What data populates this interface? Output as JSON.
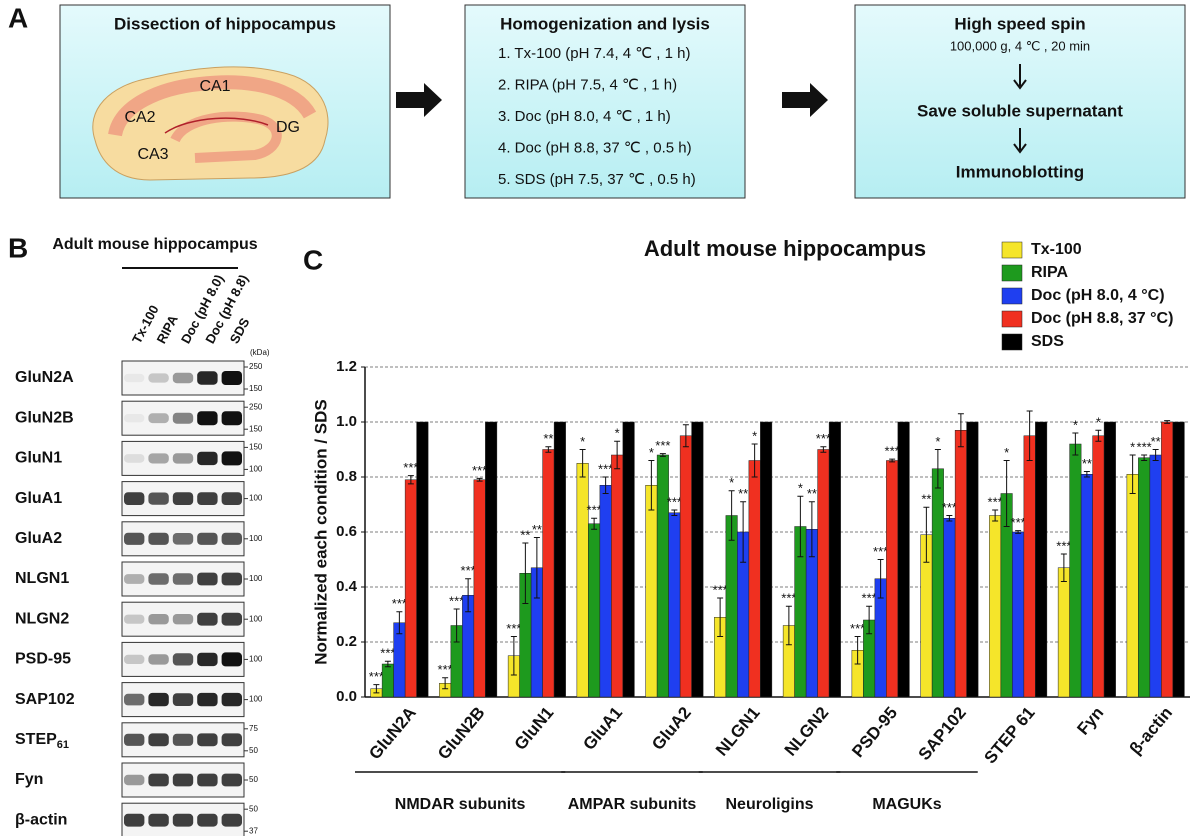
{
  "panel_a": {
    "label": "A",
    "box1": {
      "title": "Dissection of hippocampus",
      "regions": [
        "CA1",
        "CA2",
        "DG",
        "CA3"
      ]
    },
    "box2": {
      "title": "Homogenization and lysis",
      "lines": [
        "1. Tx-100 (pH 7.4, 4 ℃ , 1 h)",
        "2. RIPA (pH 7.5, 4 ℃ , 1 h)",
        "3. Doc (pH 8.0, 4 ℃ , 1 h)",
        "4. Doc (pH 8.8, 37 ℃ , 0.5 h)",
        "5. SDS (pH 7.5, 37 ℃ , 0.5 h)"
      ]
    },
    "box3": {
      "title": "High speed spin",
      "subtitle": "100,000 g, 4 ℃ , 20 min",
      "step2": "Save soluble supernatant",
      "step3": "Immunoblotting"
    }
  },
  "panel_b": {
    "label": "B",
    "title": "Adult mouse hippocampus",
    "lanes": [
      "Tx-100",
      "RIPA",
      "Doc (pH 8.0)",
      "Doc (pH 8.8)",
      "SDS"
    ],
    "kda_label": "(kDa)",
    "rows": [
      {
        "protein": "GluN2A",
        "markers": [
          "250",
          "150"
        ]
      },
      {
        "protein": "GluN2B",
        "markers": [
          "250",
          "150"
        ]
      },
      {
        "protein": "GluN1",
        "markers": [
          "150",
          "100"
        ]
      },
      {
        "protein": "GluA1",
        "markers": [
          "100"
        ]
      },
      {
        "protein": "GluA2",
        "markers": [
          "100"
        ]
      },
      {
        "protein": "NLGN1",
        "markers": [
          "100"
        ]
      },
      {
        "protein": "NLGN2",
        "markers": [
          "100"
        ]
      },
      {
        "protein": "PSD-95",
        "markers": [
          "100"
        ]
      },
      {
        "protein": "SAP102",
        "markers": [
          "100"
        ]
      },
      {
        "protein": "STEP",
        "sub": "61",
        "markers": [
          "75",
          "50"
        ]
      },
      {
        "protein": "Fyn",
        "markers": [
          "50"
        ]
      },
      {
        "protein": "β-actin",
        "markers": [
          "50",
          "37"
        ]
      }
    ]
  },
  "chart_data": {
    "type": "bar",
    "label": "C",
    "title": "Adult mouse hippocampus",
    "y_label": "Normalized each condition / SDS",
    "categories": [
      "GluN2A",
      "GluN2B",
      "GluN1",
      "GluA1",
      "GluA2",
      "NLGN1",
      "NLGN2",
      "PSD-95",
      "SAP102",
      "STEP 61",
      "Fyn",
      "β-actin"
    ],
    "groups": [
      "NMDAR subunits",
      "AMPAR subunits",
      "Neuroligins",
      "MAGUKs"
    ],
    "series": [
      {
        "name": "Tx-100",
        "color": "#f5e52a",
        "values": [
          0.03,
          0.05,
          0.15,
          0.85,
          0.77,
          0.29,
          0.26,
          0.17,
          0.59,
          0.66,
          0.47,
          0.81
        ],
        "errors": [
          0.015,
          0.02,
          0.07,
          0.05,
          0.09,
          0.07,
          0.07,
          0.05,
          0.1,
          0.02,
          0.05,
          0.07
        ],
        "significance": [
          "***",
          "***",
          "***",
          "*",
          "*",
          "***",
          "***",
          "***",
          "**",
          "***",
          "***",
          "*"
        ]
      },
      {
        "name": "RIPA",
        "color": "#1e9a1e",
        "values": [
          0.12,
          0.26,
          0.45,
          0.63,
          0.88,
          0.66,
          0.62,
          0.28,
          0.83,
          0.74,
          0.92,
          0.87
        ],
        "errors": [
          0.01,
          0.06,
          0.11,
          0.02,
          0.005,
          0.09,
          0.11,
          0.05,
          0.07,
          0.12,
          0.04,
          0.01
        ],
        "significance": [
          "***",
          "***",
          "**",
          "***",
          "***",
          "*",
          "*",
          "***",
          "*",
          "*",
          "*",
          "***"
        ]
      },
      {
        "name": "Doc (pH 8.0, 4 °C)",
        "color": "#1f3ff0",
        "values": [
          0.27,
          0.37,
          0.47,
          0.77,
          0.67,
          0.6,
          0.61,
          0.43,
          0.65,
          0.6,
          0.81,
          0.88
        ],
        "errors": [
          0.04,
          0.06,
          0.11,
          0.03,
          0.01,
          0.11,
          0.1,
          0.07,
          0.01,
          0.005,
          0.01,
          0.02
        ],
        "significance": [
          "***",
          "***",
          "**",
          "***",
          "***",
          "**",
          "**",
          "***",
          "***",
          "***",
          "**",
          "**"
        ]
      },
      {
        "name": "Doc (pH 8.8, 37 °C)",
        "color": "#f03020",
        "values": [
          0.79,
          0.79,
          0.9,
          0.88,
          0.95,
          0.86,
          0.9,
          0.86,
          0.97,
          0.95,
          0.95,
          1.0
        ],
        "errors": [
          0.015,
          0.005,
          0.01,
          0.05,
          0.04,
          0.06,
          0.01,
          0.005,
          0.06,
          0.09,
          0.02,
          0.005
        ],
        "significance": [
          "***",
          "***",
          "**",
          "*",
          null,
          "*",
          "***",
          "***",
          null,
          null,
          "*",
          null
        ]
      },
      {
        "name": "SDS",
        "color": "#000000",
        "values": [
          1.0,
          1.0,
          1.0,
          1.0,
          1.0,
          1.0,
          1.0,
          1.0,
          1.0,
          1.0,
          1.0,
          1.0
        ]
      }
    ],
    "ylim": [
      0,
      1.2
    ],
    "yticks": [
      {
        "value": 0,
        "label": "0.0"
      },
      {
        "value": 0.2,
        "label": "0.2"
      },
      {
        "value": 0.4,
        "label": "0.4"
      },
      {
        "value": 0.6,
        "label": "0.6"
      },
      {
        "value": 0.8,
        "label": "0.8"
      },
      {
        "value": 1,
        "label": "1.0"
      },
      {
        "value": 1.2,
        "label": "1.2"
      }
    ],
    "grid": true
  }
}
